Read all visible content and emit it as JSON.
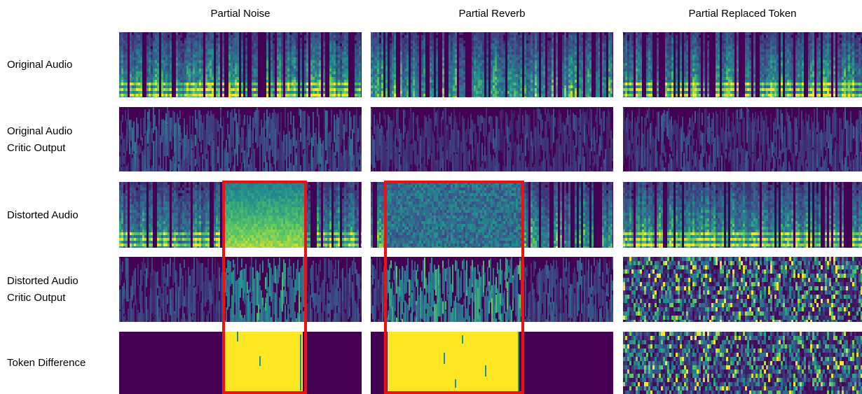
{
  "columns": [
    {
      "label": "Partial Noise"
    },
    {
      "label": "Partial Reverb"
    },
    {
      "label": "Partial Replaced Token"
    }
  ],
  "rows": [
    {
      "label_lines": [
        "Original Audio"
      ]
    },
    {
      "label_lines": [
        "Original Audio",
        "Critic Output"
      ]
    },
    {
      "label_lines": [
        "Distorted Audio"
      ]
    },
    {
      "label_lines": [
        "Distorted Audio",
        "Critic Output"
      ]
    },
    {
      "label_lines": [
        "Token Difference"
      ]
    }
  ],
  "colors": {
    "background_low": "#440154",
    "mid_blue": "#3b528b",
    "teal": "#21918c",
    "green": "#5ec962",
    "yellow": "#fde725",
    "highlight_box": "#ee1111"
  }
}
